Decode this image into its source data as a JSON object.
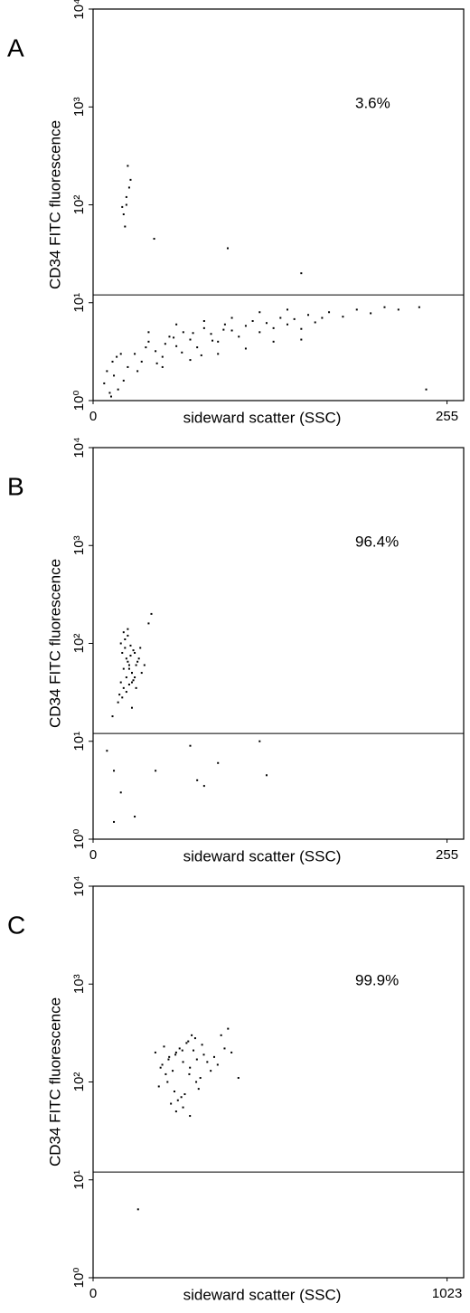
{
  "chart_data": [
    {
      "type": "scatter",
      "panel": "A",
      "annotation": "3.6%",
      "ylabel": "CD34 FITC fluorescence",
      "xlabel": "sideward scatter (SSC)",
      "xlim": [
        0,
        267
      ],
      "xticks": [
        0,
        255
      ],
      "ylim": [
        1,
        10000
      ],
      "log_y": true,
      "gate": 12,
      "color": "#000000",
      "yticks": [
        {
          "value": 1,
          "label": "10⁰"
        },
        {
          "value": 10,
          "label": "10¹"
        },
        {
          "value": 100,
          "label": "10²"
        },
        {
          "value": 1000,
          "label": "10³"
        },
        {
          "value": 10000,
          "label": "10⁴"
        }
      ],
      "x": [
        22,
        24,
        26,
        23,
        25,
        27,
        21,
        24,
        44,
        97,
        150,
        8,
        10,
        12,
        14,
        15,
        18,
        20,
        22,
        25,
        13,
        17,
        30,
        35,
        40,
        45,
        50,
        55,
        60,
        65,
        70,
        75,
        80,
        85,
        90,
        95,
        100,
        105,
        110,
        115,
        120,
        125,
        130,
        135,
        140,
        145,
        150,
        155,
        160,
        165,
        170,
        180,
        190,
        200,
        210,
        220,
        235,
        50,
        70,
        90,
        110,
        130,
        150,
        40,
        60,
        80,
        100,
        120,
        140,
        240,
        32,
        38,
        46,
        52,
        58,
        64,
        72,
        78,
        86,
        94
      ],
      "values": [
        80,
        120,
        150,
        60,
        250,
        180,
        95,
        100,
        45,
        36,
        20,
        1.5,
        2,
        1.2,
        2.5,
        1.8,
        1.3,
        3,
        1.6,
        2.2,
        1.1,
        2.8,
        3,
        2.5,
        4,
        3.2,
        2.8,
        4.5,
        3.6,
        5,
        4.2,
        3.5,
        5.5,
        4.8,
        4,
        6,
        5.2,
        4.5,
        5.8,
        6.5,
        5,
        6.2,
        5.5,
        7,
        6,
        6.8,
        5.4,
        7.5,
        6.3,
        7,
        8,
        7.2,
        8.5,
        7.8,
        9,
        8.5,
        9,
        2.2,
        2.6,
        3,
        3.4,
        4,
        4.2,
        5,
        6,
        6.5,
        7,
        8,
        8.5,
        1.3,
        2,
        3.5,
        2.4,
        3.8,
        4.4,
        3.1,
        4.9,
        2.9,
        4.1,
        5.3
      ]
    },
    {
      "type": "scatter",
      "panel": "B",
      "annotation": "96.4%",
      "ylabel": "CD34 FITC fluorescence",
      "xlabel": "sideward scatter (SSC)",
      "xlim": [
        0,
        267
      ],
      "xticks": [
        0,
        255
      ],
      "ylim": [
        1,
        10000
      ],
      "log_y": true,
      "gate": 12,
      "color": "#000000",
      "yticks": [
        {
          "value": 1,
          "label": "10⁰"
        },
        {
          "value": 10,
          "label": "10¹"
        },
        {
          "value": 100,
          "label": "10²"
        },
        {
          "value": 1000,
          "label": "10³"
        },
        {
          "value": 10000,
          "label": "10⁴"
        }
      ],
      "x": [
        20,
        22,
        24,
        26,
        28,
        30,
        21,
        23,
        25,
        27,
        29,
        31,
        19,
        22,
        24,
        26,
        28,
        33,
        35,
        20,
        23,
        25,
        27,
        30,
        32,
        18,
        21,
        24,
        26,
        29,
        34,
        37,
        22,
        25,
        28,
        31,
        40,
        42,
        10,
        15,
        20,
        15,
        30,
        45,
        70,
        75,
        80,
        120,
        125,
        90,
        14,
        28
      ],
      "values": [
        40,
        55,
        70,
        60,
        50,
        45,
        80,
        90,
        65,
        75,
        85,
        60,
        30,
        35,
        45,
        55,
        40,
        70,
        50,
        100,
        110,
        120,
        95,
        80,
        65,
        25,
        28,
        32,
        38,
        42,
        90,
        60,
        130,
        140,
        50,
        35,
        160,
        200,
        8,
        5,
        3,
        1.5,
        1.7,
        5,
        9,
        4,
        3.5,
        10,
        4.5,
        6,
        18,
        22
      ]
    },
    {
      "type": "scatter",
      "panel": "C",
      "annotation": "99.9%",
      "ylabel": "CD34 FITC fluorescence",
      "xlabel": "sideward scatter (SSC)",
      "xlim": [
        0,
        1071
      ],
      "xticks": [
        0,
        1023
      ],
      "ylim": [
        1,
        10000
      ],
      "log_y": true,
      "gate": 12,
      "color": "#000000",
      "yticks": [
        {
          "value": 1,
          "label": "10⁰"
        },
        {
          "value": 10,
          "label": "10¹"
        },
        {
          "value": 100,
          "label": "10²"
        },
        {
          "value": 1000,
          "label": "10³"
        },
        {
          "value": 10000,
          "label": "10⁴"
        }
      ],
      "x": [
        200,
        220,
        240,
        260,
        280,
        300,
        320,
        210,
        230,
        250,
        270,
        290,
        310,
        330,
        190,
        215,
        235,
        255,
        275,
        295,
        315,
        340,
        360,
        180,
        205,
        225,
        245,
        265,
        285,
        305,
        350,
        380,
        195,
        218,
        238,
        258,
        278,
        298,
        400,
        420,
        130,
        240,
        260,
        280,
        370,
        390
      ],
      "values": [
        150,
        180,
        200,
        160,
        140,
        170,
        190,
        120,
        130,
        220,
        250,
        210,
        110,
        160,
        90,
        100,
        80,
        70,
        260,
        280,
        240,
        130,
        150,
        200,
        230,
        60,
        65,
        75,
        300,
        85,
        180,
        220,
        140,
        170,
        190,
        210,
        120,
        100,
        200,
        110,
        5,
        50,
        55,
        45,
        300,
        350
      ]
    }
  ]
}
